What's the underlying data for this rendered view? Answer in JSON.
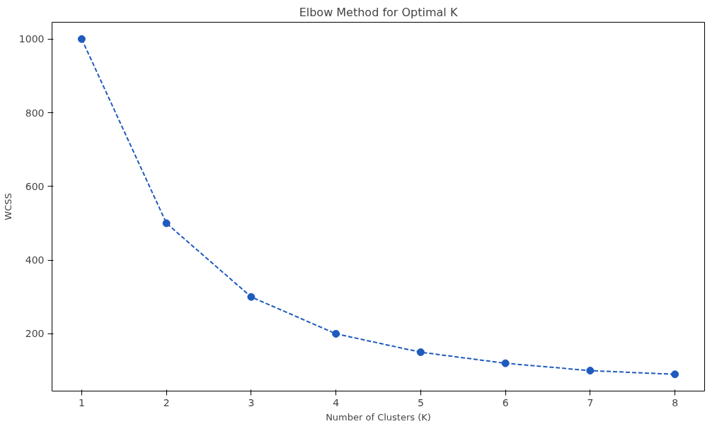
{
  "chart_data": {
    "type": "line",
    "title": "Elbow Method for Optimal K",
    "xlabel": "Number of Clusters (K)",
    "ylabel": "WCSS",
    "x": [
      1,
      2,
      3,
      4,
      5,
      6,
      7,
      8
    ],
    "series": [
      {
        "color": "#1f5bbf",
        "values": [
          1000,
          500,
          300,
          200,
          150,
          120,
          100,
          90
        ]
      }
    ],
    "xlim": [
      0.65,
      8.35
    ],
    "ylim": [
      44.5,
      1045.5
    ],
    "xticks": [
      1,
      2,
      3,
      4,
      5,
      6,
      7,
      8
    ],
    "yticks": [
      200,
      400,
      600,
      800,
      1000
    ],
    "marker": "circle",
    "line_style": "dashed",
    "grid": false
  }
}
